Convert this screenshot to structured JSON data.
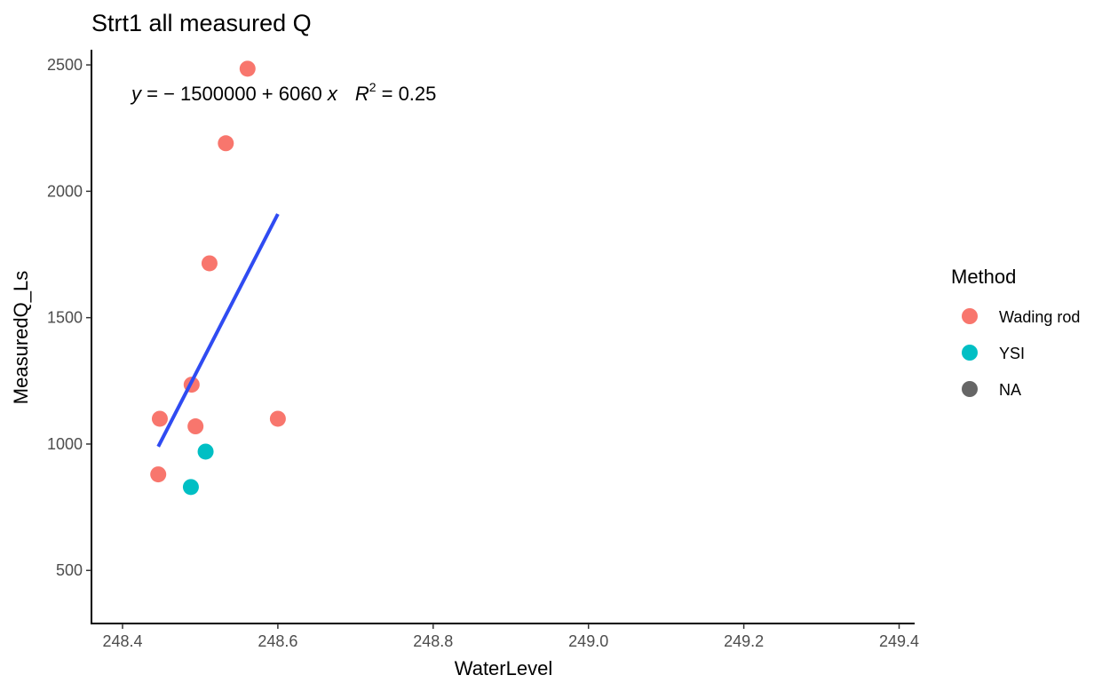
{
  "chart_data": {
    "type": "scatter",
    "title": "Strt1 all measured Q",
    "xlabel": "WaterLevel",
    "ylabel": "MeasuredQ_Ls",
    "xlim": [
      248.36,
      249.42
    ],
    "ylim": [
      290,
      2560
    ],
    "x_ticks": [
      248.4,
      248.6,
      248.8,
      249.0,
      249.2,
      249.4
    ],
    "x_tick_labels": [
      "248.4",
      "248.6",
      "248.8",
      "249.0",
      "249.2",
      "249.4"
    ],
    "y_ticks": [
      500,
      1000,
      1500,
      2000,
      2500
    ],
    "y_tick_labels": [
      "500",
      "1000",
      "1500",
      "2000",
      "2500"
    ],
    "grid": false,
    "legend": {
      "title": "Method",
      "placement": "right",
      "entries": [
        {
          "label": "Wading rod",
          "color": "#F8766D"
        },
        {
          "label": "YSI",
          "color": "#00BFC4"
        },
        {
          "label": "NA",
          "color": "#666666"
        }
      ]
    },
    "series": [
      {
        "name": "Wading rod",
        "color": "#F8766D",
        "points": [
          {
            "x": 248.561,
            "y": 2485
          },
          {
            "x": 248.533,
            "y": 2190
          },
          {
            "x": 248.512,
            "y": 1715
          },
          {
            "x": 248.489,
            "y": 1235
          },
          {
            "x": 248.448,
            "y": 1100
          },
          {
            "x": 248.6,
            "y": 1100
          },
          {
            "x": 248.494,
            "y": 1070
          },
          {
            "x": 248.446,
            "y": 880
          }
        ]
      },
      {
        "name": "YSI",
        "color": "#00BFC4",
        "points": [
          {
            "x": 248.507,
            "y": 970
          },
          {
            "x": 248.488,
            "y": 830
          }
        ]
      }
    ],
    "fit_line": {
      "color": "#2F4BF2",
      "x": [
        248.446,
        248.6
      ],
      "y": [
        990,
        1910
      ]
    },
    "annotation": {
      "equation_y": "y",
      "equation_mid": " = − 1500000 + 6060 ",
      "equation_x": "x",
      "r2_symbol": "R",
      "r2_exp": "2",
      "r2_value": " = 0.25"
    }
  }
}
